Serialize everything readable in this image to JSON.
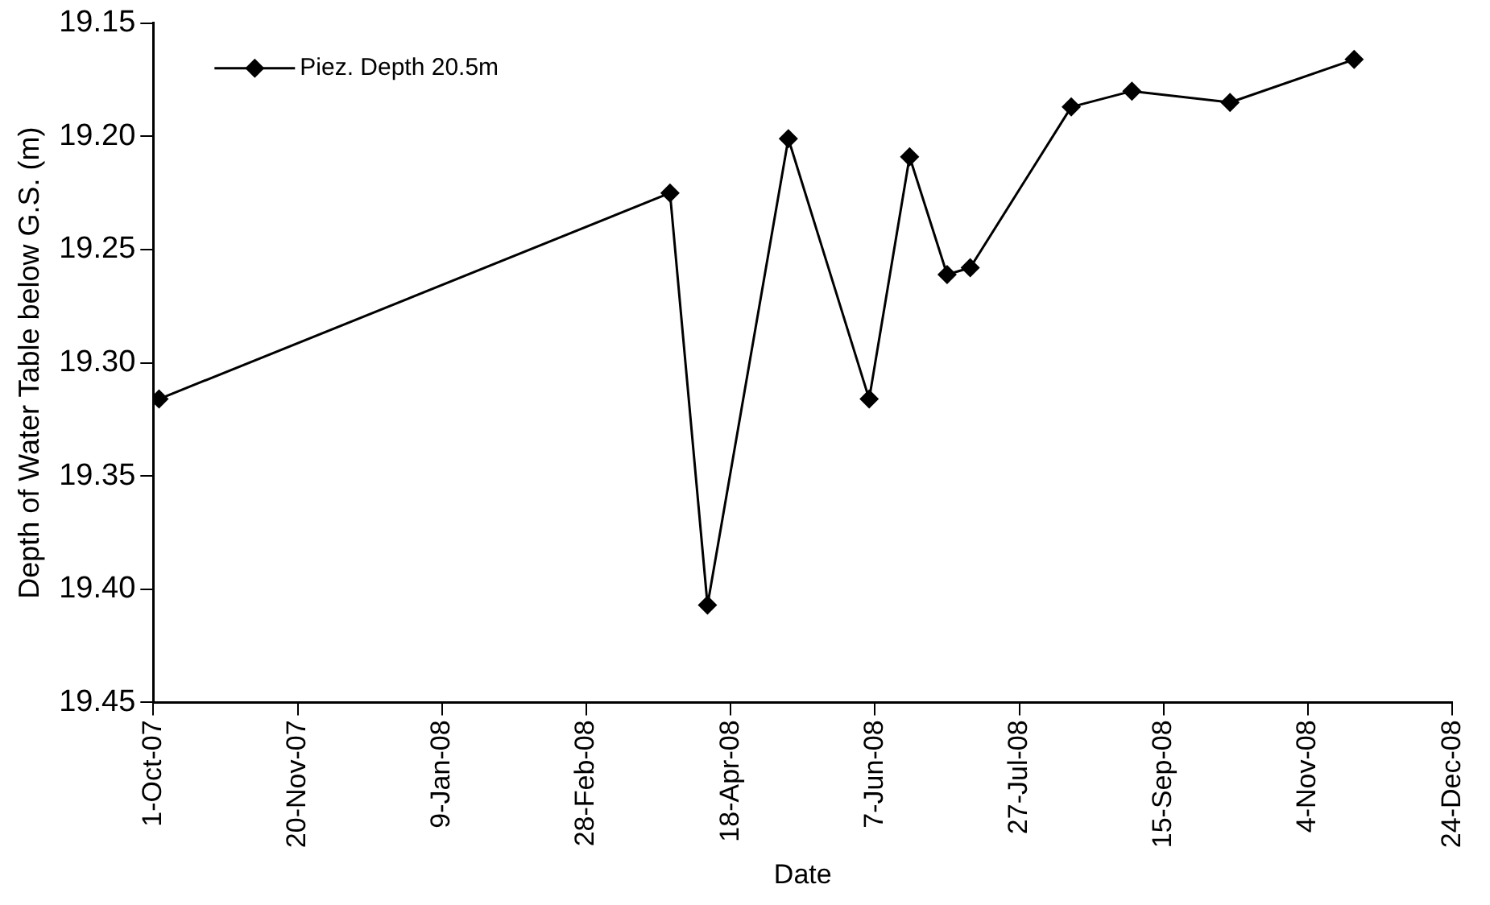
{
  "chart_data": {
    "type": "line",
    "xlabel": "Date",
    "ylabel": "Depth of Water Table below G.S. (m)",
    "x": [
      "2007-10-03",
      "2008-03-28",
      "2008-04-10",
      "2008-05-08",
      "2008-06-05",
      "2008-06-19",
      "2008-07-02",
      "2008-07-10",
      "2008-08-14",
      "2008-09-04",
      "2008-10-08",
      "2008-11-20"
    ],
    "series": [
      {
        "name": "Piez. Depth 20.5m",
        "color": "#000000",
        "values": [
          19.316,
          19.225,
          19.407,
          19.201,
          19.316,
          19.209,
          19.261,
          19.258,
          19.187,
          19.18,
          19.185,
          19.166
        ]
      }
    ],
    "xlim": [
      "2007-10-01",
      "2008-12-24"
    ],
    "xticks": [
      {
        "value": "2007-10-01",
        "label": "1-Oct-07"
      },
      {
        "value": "2007-11-20",
        "label": "20-Nov-07"
      },
      {
        "value": "2008-01-09",
        "label": "9-Jan-08"
      },
      {
        "value": "2008-02-28",
        "label": "28-Feb-08"
      },
      {
        "value": "2008-04-18",
        "label": "18-Apr-08"
      },
      {
        "value": "2008-06-07",
        "label": "7-Jun-08"
      },
      {
        "value": "2008-07-27",
        "label": "27-Jul-08"
      },
      {
        "value": "2008-09-15",
        "label": "15-Sep-08"
      },
      {
        "value": "2008-11-04",
        "label": "4-Nov-08"
      },
      {
        "value": "2008-12-24",
        "label": "24-Dec-08"
      }
    ],
    "ylim": [
      19.45,
      19.15
    ],
    "yticks": [
      {
        "value": 19.15,
        "label": "19.15"
      },
      {
        "value": 19.2,
        "label": "19.20"
      },
      {
        "value": 19.25,
        "label": "19.25"
      },
      {
        "value": 19.3,
        "label": "19.30"
      },
      {
        "value": 19.35,
        "label": "19.35"
      },
      {
        "value": 19.4,
        "label": "19.40"
      },
      {
        "value": 19.45,
        "label": "19.45"
      }
    ],
    "grid": false,
    "legend": "top left",
    "marker": "diamond",
    "line_style": "solid"
  }
}
